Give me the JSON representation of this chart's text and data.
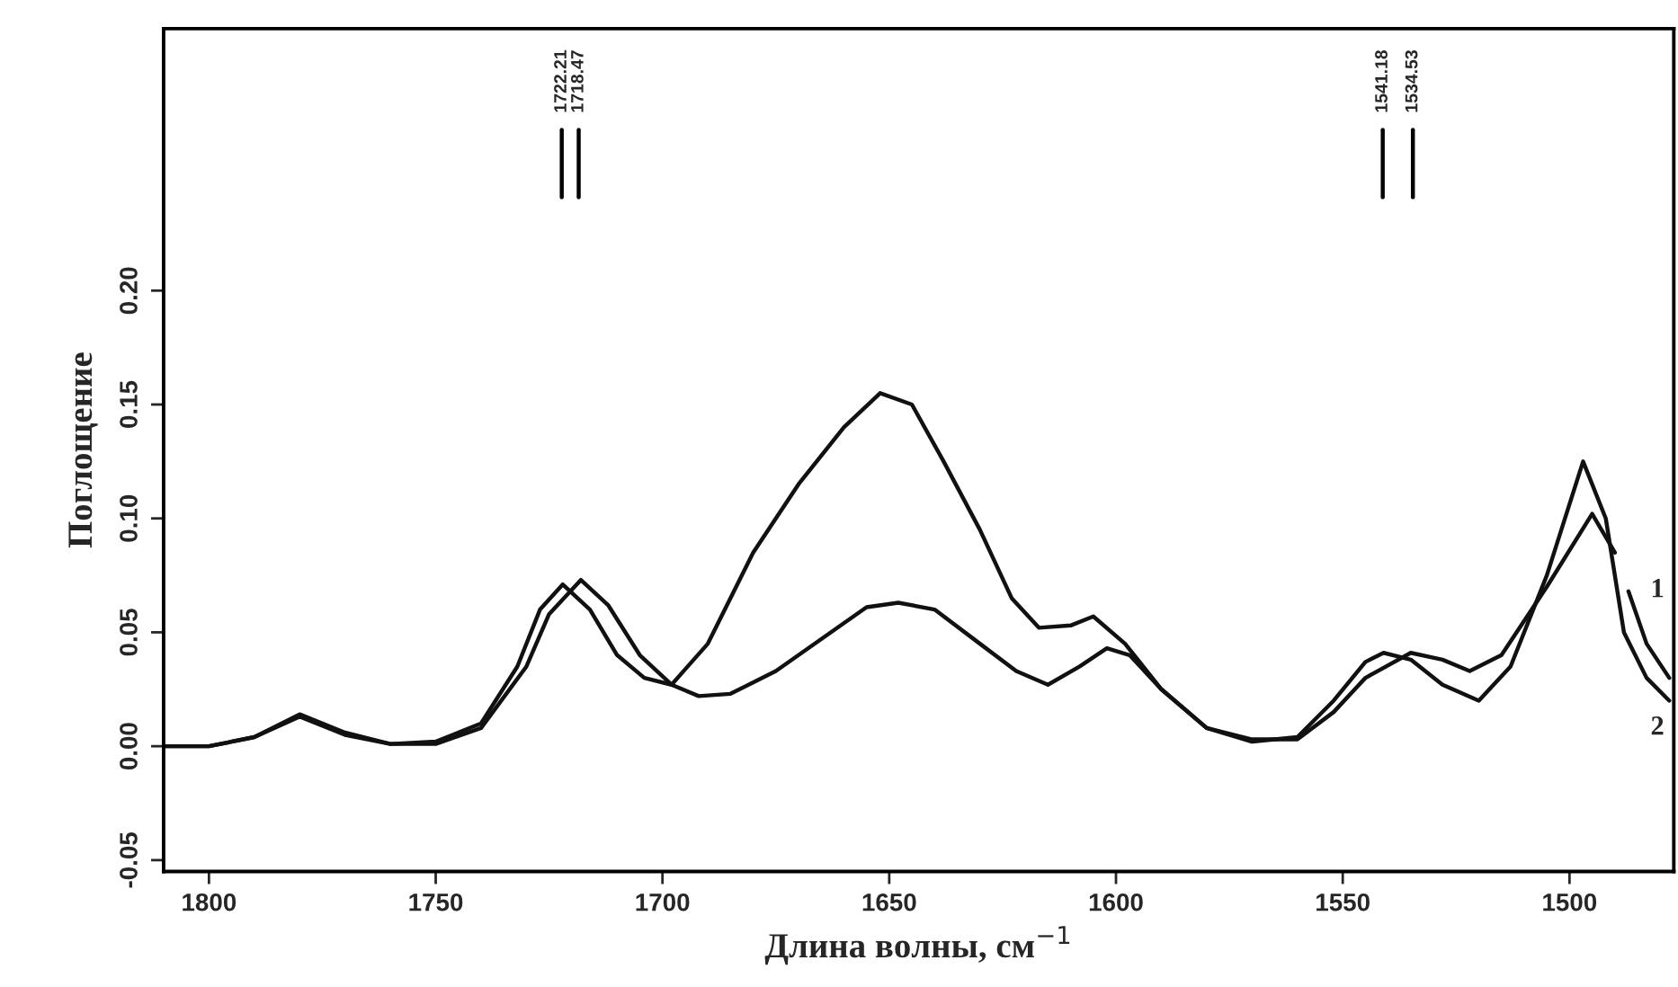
{
  "chart_data": {
    "type": "line",
    "xlabel": "Длина волны, см$^{−1}$",
    "ylabel": "Поглощение",
    "xlim": [
      1810,
      1477
    ],
    "ylim": [
      -0.055,
      0.315
    ],
    "xticks": [
      1800,
      1750,
      1700,
      1650,
      1600,
      1550,
      1500
    ],
    "yticks": [
      {
        "value": -0.05,
        "label": "-0.05"
      },
      {
        "value": 0,
        "label": "0.00"
      },
      {
        "value": 0.05,
        "label": "0.05"
      },
      {
        "value": 0.1,
        "label": "0.10"
      },
      {
        "value": 0.15,
        "label": "0.15"
      },
      {
        "value": 0.2,
        "label": "0.20"
      }
    ],
    "grid": false,
    "legend": false,
    "marker": "none",
    "line_style": "solid",
    "ref_lines": [
      {
        "axis": "x",
        "value": 1722.21,
        "label": "1722.21"
      },
      {
        "axis": "x",
        "value": 1718.47,
        "label": "1718.47"
      },
      {
        "axis": "x",
        "value": 1541.18,
        "label": "1541.18"
      },
      {
        "axis": "x",
        "value": 1534.53,
        "label": "1534.53"
      }
    ],
    "series": [
      {
        "name": "1",
        "color": "#111111",
        "x": [
          1810,
          1800,
          1790,
          1780,
          1770,
          1760,
          1750,
          1740,
          1730,
          1725,
          1718,
          1712,
          1705,
          1698,
          1692,
          1685,
          1675,
          1665,
          1655,
          1648,
          1640,
          1630,
          1622,
          1615,
          1608,
          1602,
          1597,
          1590,
          1580,
          1570,
          1560,
          1552,
          1545,
          1535,
          1528,
          1522,
          1515,
          1505,
          1495,
          1490,
          1488.5,
          1487,
          1483,
          1478
        ],
        "values": [
          0,
          0,
          0.004,
          0.013,
          0.005,
          0.001,
          0.001,
          0.008,
          0.035,
          0.058,
          0.073,
          0.062,
          0.04,
          0.027,
          0.022,
          0.023,
          0.033,
          0.047,
          0.061,
          0.063,
          0.06,
          0.045,
          0.033,
          0.027,
          0.035,
          0.043,
          0.04,
          0.025,
          0.008,
          0.003,
          0.003,
          0.015,
          0.03,
          0.041,
          0.038,
          0.033,
          0.04,
          0.07,
          0.102,
          0.085,
          null,
          0.068,
          0.045,
          0.03
        ]
      },
      {
        "name": "2",
        "color": "#111111",
        "x": [
          1810,
          1800,
          1790,
          1780,
          1770,
          1760,
          1750,
          1740,
          1732,
          1727,
          1722,
          1716,
          1710,
          1704,
          1698,
          1690,
          1680,
          1670,
          1660,
          1652,
          1645,
          1638,
          1630,
          1623,
          1617,
          1610,
          1605,
          1598,
          1590,
          1580,
          1570,
          1560,
          1552,
          1545,
          1541,
          1535,
          1528,
          1520,
          1513,
          1505,
          1497,
          1492,
          1488,
          1483,
          1478
        ],
        "values": [
          0,
          0,
          0.004,
          0.014,
          0.006,
          0.001,
          0.002,
          0.01,
          0.035,
          0.06,
          0.071,
          0.06,
          0.04,
          0.03,
          0.027,
          0.045,
          0.085,
          0.115,
          0.14,
          0.155,
          0.15,
          0.125,
          0.095,
          0.065,
          0.052,
          0.053,
          0.057,
          0.045,
          0.025,
          0.008,
          0.002,
          0.004,
          0.02,
          0.037,
          0.041,
          0.038,
          0.027,
          0.02,
          0.035,
          0.075,
          0.125,
          0.1,
          0.05,
          0.03,
          0.02
        ]
      }
    ]
  }
}
